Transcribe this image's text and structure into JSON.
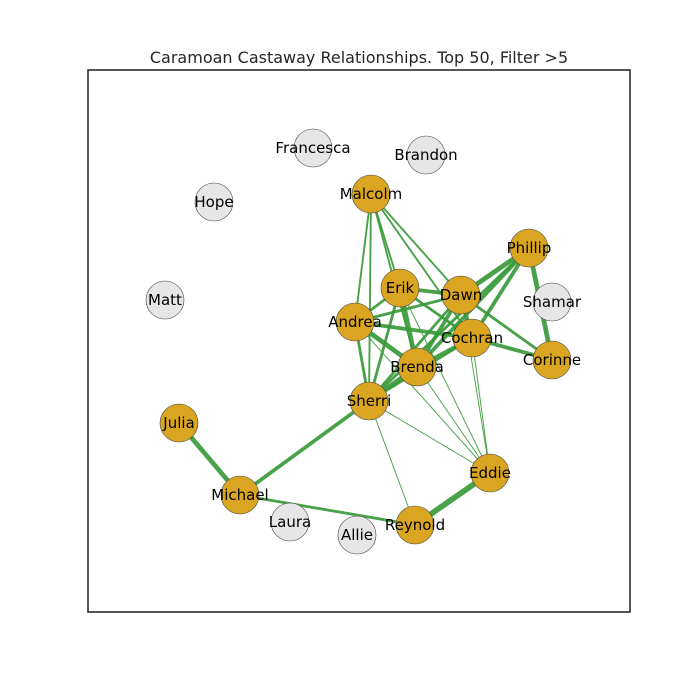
{
  "title": "Caramoan Castaway Relationships. Top 50, Filter >5",
  "colors": {
    "active_node": "#DAA520",
    "inactive_node": "#E6E6E6",
    "edge": "#3A9A3A"
  },
  "nodes": [
    {
      "id": "Francesca",
      "active": false
    },
    {
      "id": "Brandon",
      "active": false
    },
    {
      "id": "Hope",
      "active": false
    },
    {
      "id": "Malcolm",
      "active": true
    },
    {
      "id": "Phillip",
      "active": true
    },
    {
      "id": "Matt",
      "active": false
    },
    {
      "id": "Erik",
      "active": true
    },
    {
      "id": "Dawn",
      "active": true
    },
    {
      "id": "Shamar",
      "active": false
    },
    {
      "id": "Andrea",
      "active": true
    },
    {
      "id": "Cochran",
      "active": true
    },
    {
      "id": "Corinne",
      "active": true
    },
    {
      "id": "Brenda",
      "active": true
    },
    {
      "id": "Sherri",
      "active": true
    },
    {
      "id": "Julia",
      "active": true
    },
    {
      "id": "Eddie",
      "active": true
    },
    {
      "id": "Michael",
      "active": true
    },
    {
      "id": "Laura",
      "active": false
    },
    {
      "id": "Allie",
      "active": false
    },
    {
      "id": "Reynold",
      "active": true
    }
  ],
  "edges": [
    {
      "source": "Malcolm",
      "target": "Erik",
      "weight": 2
    },
    {
      "source": "Malcolm",
      "target": "Dawn",
      "weight": 2
    },
    {
      "source": "Malcolm",
      "target": "Andrea",
      "weight": 2
    },
    {
      "source": "Malcolm",
      "target": "Brenda",
      "weight": 2
    },
    {
      "source": "Malcolm",
      "target": "Cochran",
      "weight": 2
    },
    {
      "source": "Malcolm",
      "target": "Sherri",
      "weight": 2
    },
    {
      "source": "Phillip",
      "target": "Dawn",
      "weight": 5
    },
    {
      "source": "Phillip",
      "target": "Cochran",
      "weight": 4
    },
    {
      "source": "Phillip",
      "target": "Brenda",
      "weight": 4
    },
    {
      "source": "Phillip",
      "target": "Corinne",
      "weight": 5
    },
    {
      "source": "Phillip",
      "target": "Sherri",
      "weight": 3
    },
    {
      "source": "Erik",
      "target": "Dawn",
      "weight": 4
    },
    {
      "source": "Erik",
      "target": "Andrea",
      "weight": 3
    },
    {
      "source": "Erik",
      "target": "Brenda",
      "weight": 5
    },
    {
      "source": "Erik",
      "target": "Cochran",
      "weight": 3
    },
    {
      "source": "Erik",
      "target": "Sherri",
      "weight": 3
    },
    {
      "source": "Dawn",
      "target": "Andrea",
      "weight": 3
    },
    {
      "source": "Dawn",
      "target": "Cochran",
      "weight": 4
    },
    {
      "source": "Dawn",
      "target": "Brenda",
      "weight": 4
    },
    {
      "source": "Dawn",
      "target": "Sherri",
      "weight": 3
    },
    {
      "source": "Dawn",
      "target": "Corinne",
      "weight": 3
    },
    {
      "source": "Andrea",
      "target": "Cochran",
      "weight": 4
    },
    {
      "source": "Andrea",
      "target": "Brenda",
      "weight": 5
    },
    {
      "source": "Andrea",
      "target": "Sherri",
      "weight": 3
    },
    {
      "source": "Cochran",
      "target": "Brenda",
      "weight": 4
    },
    {
      "source": "Cochran",
      "target": "Corinne",
      "weight": 4
    },
    {
      "source": "Cochran",
      "target": "Sherri",
      "weight": 3
    },
    {
      "source": "Cochran",
      "target": "Eddie",
      "weight": 1
    },
    {
      "source": "Dawn",
      "target": "Eddie",
      "weight": 1
    },
    {
      "source": "Erik",
      "target": "Eddie",
      "weight": 1
    },
    {
      "source": "Andrea",
      "target": "Eddie",
      "weight": 1
    },
    {
      "source": "Brenda",
      "target": "Sherri",
      "weight": 5
    },
    {
      "source": "Brenda",
      "target": "Eddie",
      "weight": 1
    },
    {
      "source": "Sherri",
      "target": "Eddie",
      "weight": 1
    },
    {
      "source": "Sherri",
      "target": "Reynold",
      "weight": 1
    },
    {
      "source": "Sherri",
      "target": "Michael",
      "weight": 4
    },
    {
      "source": "Julia",
      "target": "Michael",
      "weight": 5
    },
    {
      "source": "Michael",
      "target": "Reynold",
      "weight": 3
    },
    {
      "source": "Eddie",
      "target": "Reynold",
      "weight": 6
    }
  ]
}
